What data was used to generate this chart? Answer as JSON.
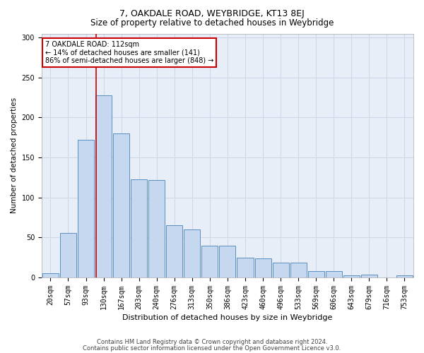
{
  "title1": "7, OAKDALE ROAD, WEYBRIDGE, KT13 8EJ",
  "title2": "Size of property relative to detached houses in Weybridge",
  "xlabel": "Distribution of detached houses by size in Weybridge",
  "ylabel": "Number of detached properties",
  "bin_labels": [
    "20sqm",
    "57sqm",
    "93sqm",
    "130sqm",
    "167sqm",
    "203sqm",
    "240sqm",
    "276sqm",
    "313sqm",
    "350sqm",
    "386sqm",
    "423sqm",
    "460sqm",
    "496sqm",
    "533sqm",
    "569sqm",
    "606sqm",
    "643sqm",
    "679sqm",
    "716sqm",
    "753sqm"
  ],
  "bar_heights": [
    5,
    56,
    172,
    228,
    180,
    123,
    122,
    65,
    60,
    40,
    40,
    25,
    24,
    19,
    19,
    8,
    8,
    3,
    4,
    0,
    3
  ],
  "bar_color": "#c5d8f0",
  "bar_edge_color": "#5a8fc0",
  "grid_color": "#d0d8e8",
  "background_color": "#e8eef8",
  "annotation_text": "7 OAKDALE ROAD: 112sqm\n← 14% of detached houses are smaller (141)\n86% of semi-detached houses are larger (848) →",
  "vline_x": 2.58,
  "vline_color": "#cc0000",
  "annotation_box_color": "#ffffff",
  "annotation_box_edge": "#cc0000",
  "footer1": "Contains HM Land Registry data © Crown copyright and database right 2024.",
  "footer2": "Contains public sector information licensed under the Open Government Licence v3.0.",
  "ylim": [
    0,
    305
  ],
  "yticks": [
    0,
    50,
    100,
    150,
    200,
    250,
    300
  ],
  "title1_fontsize": 9,
  "title2_fontsize": 8.5,
  "ylabel_fontsize": 7.5,
  "xlabel_fontsize": 8,
  "tick_fontsize": 7,
  "footer_fontsize": 6
}
